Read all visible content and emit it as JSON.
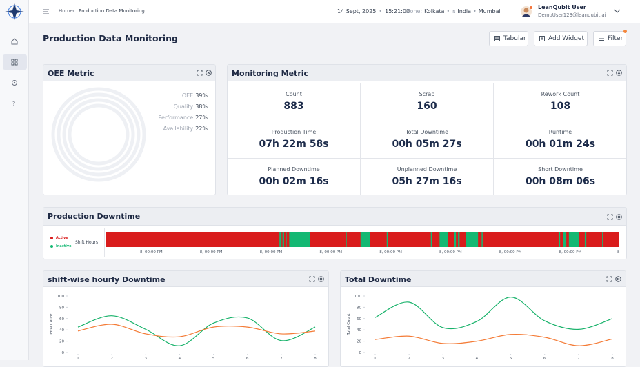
{
  "header": {
    "breadcrumb": [
      "Home",
      "Production Data Monitoring"
    ],
    "date": "14 Sept, 2025",
    "time": "15:21:00",
    "zone_label": "Zone:",
    "zone": "Kolkata",
    "country_code": "IN",
    "country": "India",
    "city": "Mumbai",
    "user_name": "LeanQubit User",
    "user_email": "DemoUser123@leanqubit.ai"
  },
  "page": {
    "title": "Production Data Monitoring",
    "buttons": [
      "Tabular",
      "Add Widget",
      "Filter"
    ]
  },
  "oee": {
    "title": "OEE Metric",
    "metrics": [
      {
        "label": "OEE",
        "value": 39,
        "value_label": "39%",
        "color": "#17b26a"
      },
      {
        "label": "Quality",
        "value": 38,
        "value_label": "38%",
        "color": "#3d63e3"
      },
      {
        "label": "Performance",
        "value": 27,
        "value_label": "27%",
        "color": "#f47b36"
      },
      {
        "label": "Availability",
        "value": 22,
        "value_label": "22%",
        "color": "#f7c631"
      }
    ]
  },
  "monitoring": {
    "title": "Monitoring Metric",
    "cells": [
      {
        "label": "Count",
        "value": 883
      },
      {
        "label": "Scrap",
        "value": 160
      },
      {
        "label": "Rework Count",
        "value": 108
      },
      {
        "label": "Production Time",
        "value": "07h 22m 58s"
      },
      {
        "label": "Total Downtime",
        "value": "00h 05m 27s"
      },
      {
        "label": "Runtime",
        "value": "00h 01m 24s"
      },
      {
        "label": "Planned Downtime",
        "value": "00h 02m 16s"
      },
      {
        "label": "Unplanned Downtime",
        "value": "05h 27m 16s"
      },
      {
        "label": "Short Downtime",
        "value": "00h 08m 06s"
      }
    ]
  },
  "downtime": {
    "title": "Production Downtime",
    "legend": [
      {
        "name": "Active",
        "color": "#d91c1c"
      },
      {
        "name": "Inactive",
        "color": "#14b873"
      }
    ],
    "row_label": "Shift Hours",
    "xlim": [
      0,
      100
    ],
    "inactive_segments": [
      [
        33.9,
        34.3
      ],
      [
        34.5,
        34.8
      ],
      [
        35.1,
        35.3
      ],
      [
        35.8,
        39.9
      ],
      [
        46.8,
        47.0
      ],
      [
        49.7,
        51.5
      ],
      [
        54.8,
        55.1
      ],
      [
        63.4,
        63.7
      ],
      [
        65.1,
        66.8
      ],
      [
        68.0,
        68.3
      ],
      [
        68.7,
        69.0
      ],
      [
        70.2,
        72.6
      ],
      [
        73.3,
        73.5
      ],
      [
        88.3,
        88.6
      ],
      [
        89.2,
        89.8
      ],
      [
        90.3,
        92.3
      ],
      [
        93.4,
        93.7
      ],
      [
        96.8,
        97.0
      ]
    ],
    "tick_labels": [
      "8, 00:00 PM",
      "8, 00:00 PM",
      "8, 00:00 PM",
      "8, 00:00 PM",
      "8, 00:00 PM",
      "8, 00:00 PM",
      "8, 00:00 PM",
      "8, 00:00 PM",
      "8"
    ]
  },
  "chart_data": [
    {
      "type": "line",
      "title": "shift-wise hourly Downtime",
      "y_label": "Total Count",
      "x": [
        1,
        2,
        3,
        4,
        5,
        6,
        7,
        8
      ],
      "xlim": [
        1,
        8
      ],
      "xticks": [
        1,
        2,
        3,
        4,
        5,
        6,
        7,
        8
      ],
      "ylim": [
        0,
        100
      ],
      "yticks": [
        0,
        20,
        40,
        60,
        80,
        100
      ],
      "series": [
        {
          "color": "#17b26a",
          "values": [
            45,
            65,
            41,
            12,
            52,
            61,
            21,
            45
          ]
        },
        {
          "color": "#f47b36",
          "values": [
            38,
            50,
            33,
            28,
            45,
            45,
            33,
            38
          ]
        }
      ]
    },
    {
      "type": "line",
      "title": "Total Downtime",
      "y_label": "Total Count",
      "x": [
        1,
        2,
        3,
        4,
        5,
        6,
        7,
        8
      ],
      "xlim": [
        1,
        8
      ],
      "xticks": [
        1,
        2,
        3,
        4,
        5,
        6,
        7,
        8
      ],
      "ylim": [
        0,
        100
      ],
      "yticks": [
        0,
        20,
        40,
        60,
        80,
        100
      ],
      "series": [
        {
          "color": "#17b26a",
          "values": [
            62,
            89,
            44,
            55,
            98,
            56,
            41,
            60
          ]
        },
        {
          "color": "#f47b36",
          "values": [
            23,
            29,
            16,
            20,
            32,
            27,
            12,
            24
          ]
        }
      ]
    }
  ]
}
